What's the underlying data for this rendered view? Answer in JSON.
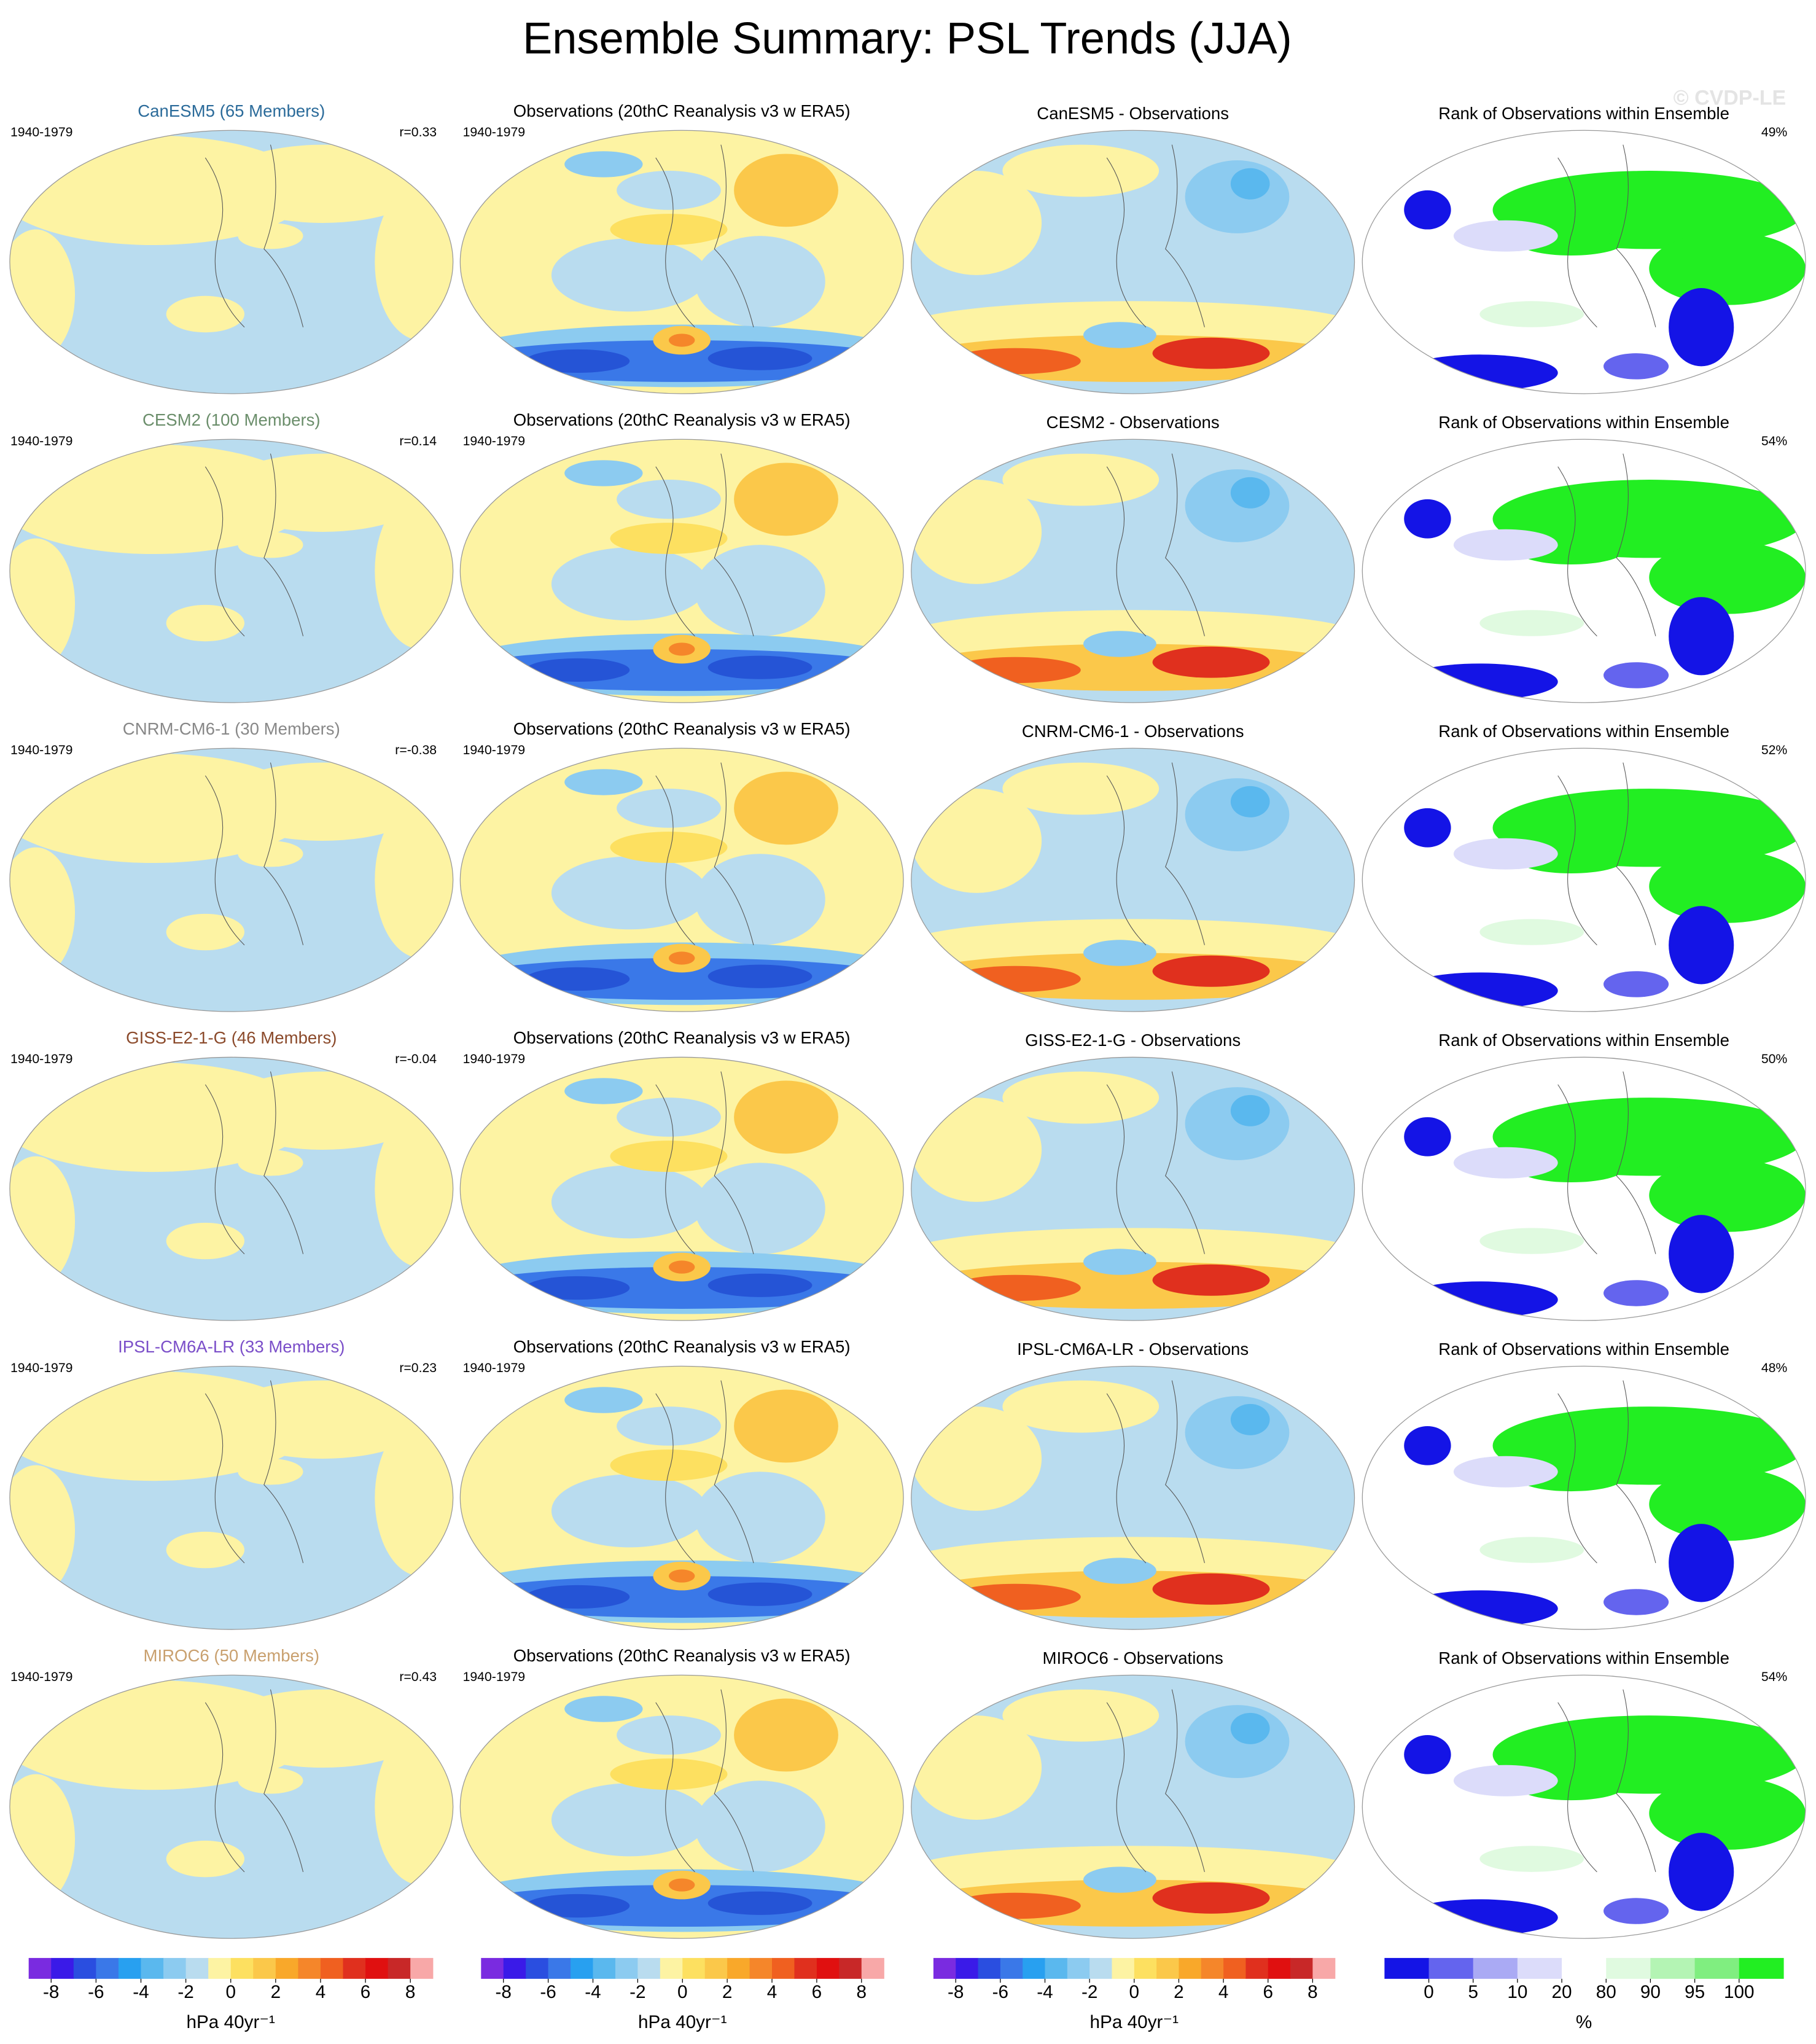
{
  "title": "Ensemble Summary: PSL Trends (JJA)",
  "watermark": "© CVDP-LE",
  "rows": [
    {
      "model_title": "CanESM5 (65 Members)",
      "model_color": "#2b6b9a",
      "period": "1940-1979",
      "r": "r=0.33",
      "obs_title": "Observations (20thC Reanalysis v3 w ERA5)",
      "obs_period": "1940-1979",
      "diff_title": "CanESM5 - Observations",
      "rank_title": "Rank of Observations within Ensemble",
      "rank_pct": "49%"
    },
    {
      "model_title": "CESM2 (100 Members)",
      "model_color": "#6b8e6b",
      "period": "1940-1979",
      "r": "r=0.14",
      "obs_title": "Observations (20thC Reanalysis v3 w ERA5)",
      "obs_period": "1940-1979",
      "diff_title": "CESM2 - Observations",
      "rank_title": "Rank of Observations within Ensemble",
      "rank_pct": "54%"
    },
    {
      "model_title": "CNRM-CM6-1 (30 Members)",
      "model_color": "#888888",
      "period": "1940-1979",
      "r": "r=-0.38",
      "obs_title": "Observations (20thC Reanalysis v3 w ERA5)",
      "obs_period": "1940-1979",
      "diff_title": "CNRM-CM6-1 - Observations",
      "rank_title": "Rank of Observations within Ensemble",
      "rank_pct": "52%"
    },
    {
      "model_title": "GISS-E2-1-G (46 Members)",
      "model_color": "#8b4a2b",
      "period": "1940-1979",
      "r": "r=-0.04",
      "obs_title": "Observations (20thC Reanalysis v3 w ERA5)",
      "obs_period": "1940-1979",
      "diff_title": "GISS-E2-1-G - Observations",
      "rank_title": "Rank of Observations within Ensemble",
      "rank_pct": "50%"
    },
    {
      "model_title": "IPSL-CM6A-LR (33 Members)",
      "model_color": "#7b4fc9",
      "period": "1940-1979",
      "r": "r=0.23",
      "obs_title": "Observations (20thC Reanalysis v3 w ERA5)",
      "obs_period": "1940-1979",
      "diff_title": "IPSL-CM6A-LR - Observations",
      "rank_title": "Rank of Observations within Ensemble",
      "rank_pct": "48%"
    },
    {
      "model_title": "MIROC6 (50 Members)",
      "model_color": "#c9a06e",
      "period": "1940-1979",
      "r": "r=0.43",
      "obs_title": "Observations (20thC Reanalysis v3 w ERA5)",
      "obs_period": "1940-1979",
      "diff_title": "MIROC6 - Observations",
      "rank_title": "Rank of Observations within Ensemble",
      "rank_pct": "54%"
    }
  ],
  "colorbars": [
    {
      "units": "hPa 40yr⁻¹",
      "ticks": [
        -8,
        -6,
        -4,
        -2,
        0,
        2,
        4,
        6,
        8
      ],
      "colors": [
        "#7a2be0",
        "#3a1ae8",
        "#2a4ee0",
        "#3a78e8",
        "#28a0f0",
        "#5ab8ee",
        "#8ccbf0",
        "#b9dcef",
        "#fdf3a3",
        "#fde060",
        "#fbc84a",
        "#f9a82a",
        "#f5862a",
        "#f06020",
        "#e0301e",
        "#e01010",
        "#c82828",
        "#f8a8a8"
      ]
    },
    {
      "units": "hPa 40yr⁻¹",
      "ticks": [
        -8,
        -6,
        -4,
        -2,
        0,
        2,
        4,
        6,
        8
      ],
      "colors": [
        "#7a2be0",
        "#3a1ae8",
        "#2a4ee0",
        "#3a78e8",
        "#28a0f0",
        "#5ab8ee",
        "#8ccbf0",
        "#b9dcef",
        "#fdf3a3",
        "#fde060",
        "#fbc84a",
        "#f9a82a",
        "#f5862a",
        "#f06020",
        "#e0301e",
        "#e01010",
        "#c82828",
        "#f8a8a8"
      ]
    },
    {
      "units": "hPa 40yr⁻¹",
      "ticks": [
        -8,
        -6,
        -4,
        -2,
        0,
        2,
        4,
        6,
        8
      ],
      "colors": [
        "#7a2be0",
        "#3a1ae8",
        "#2a4ee0",
        "#3a78e8",
        "#28a0f0",
        "#5ab8ee",
        "#8ccbf0",
        "#b9dcef",
        "#fdf3a3",
        "#fde060",
        "#fbc84a",
        "#f9a82a",
        "#f5862a",
        "#f06020",
        "#e0301e",
        "#e01010",
        "#c82828",
        "#f8a8a8"
      ]
    },
    {
      "units": "%",
      "ticks": [
        0,
        5,
        10,
        20,
        80,
        90,
        95,
        100
      ],
      "colors": [
        "#1414e6",
        "#6464ee",
        "#aaaaf4",
        "#dcdcfa",
        "#ffffff",
        "#e0fae0",
        "#b4f4b4",
        "#80ee80",
        "#22ee22"
      ]
    }
  ]
}
